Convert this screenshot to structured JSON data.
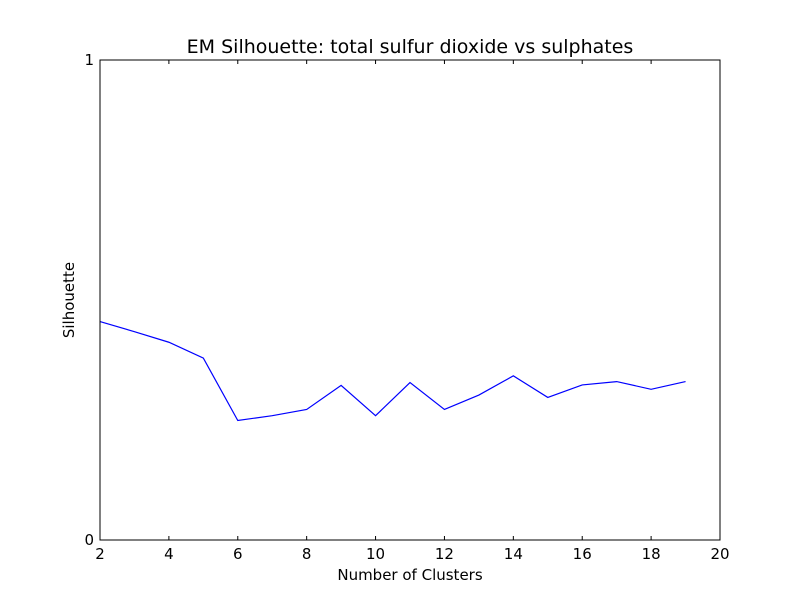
{
  "chart_data": {
    "type": "line",
    "title": "EM Silhouette: total sulfur dioxide vs sulphates",
    "xlabel": "Number of Clusters",
    "ylabel": "Silhouette",
    "xlim": [
      2,
      20
    ],
    "ylim": [
      0,
      1
    ],
    "xticks": [
      "2",
      "4",
      "6",
      "8",
      "10",
      "12",
      "14",
      "16",
      "18",
      "20"
    ],
    "yticks": [
      "0",
      "1"
    ],
    "grid": false,
    "legend": "none",
    "series": [
      {
        "color": "#0000ff",
        "x": [
          2,
          3,
          4,
          5,
          6,
          7,
          8,
          9,
          10,
          11,
          12,
          13,
          14,
          15,
          16,
          17,
          18,
          19
        ],
        "y": [
          0.455,
          0.434,
          0.412,
          0.379,
          0.249,
          0.259,
          0.272,
          0.322,
          0.259,
          0.328,
          0.272,
          0.302,
          0.342,
          0.297,
          0.323,
          0.33,
          0.314,
          0.33
        ]
      }
    ]
  }
}
